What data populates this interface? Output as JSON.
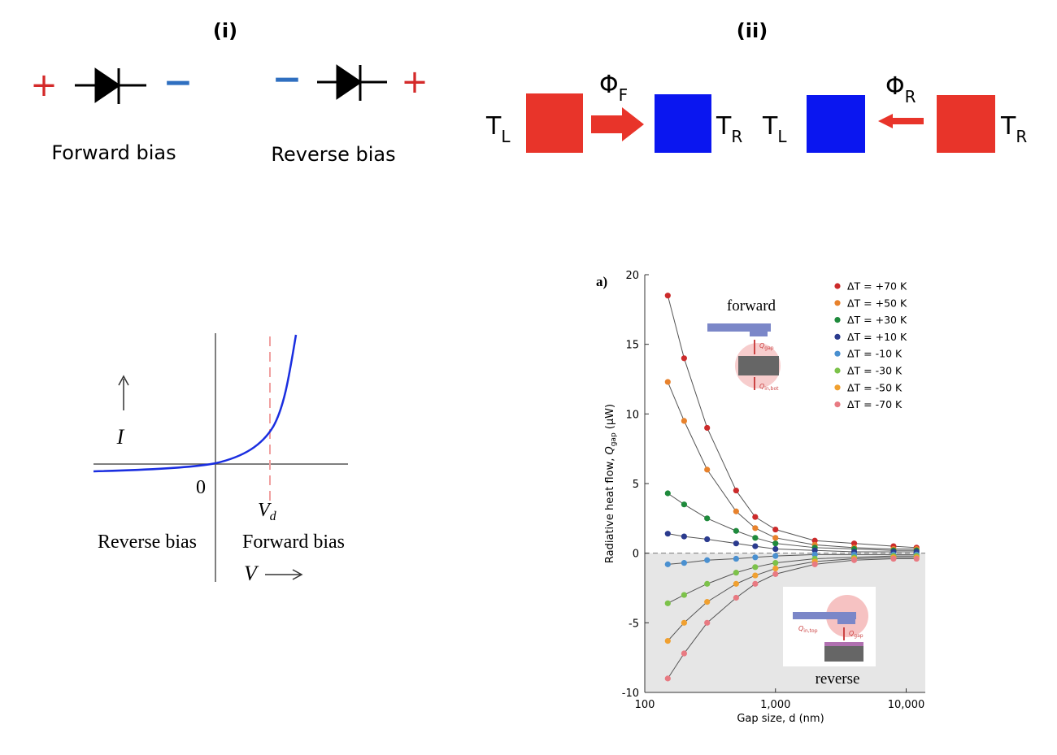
{
  "panel_i": {
    "title": "(i)",
    "forward": {
      "plus": "+",
      "minus": "−",
      "label": "Forward bias"
    },
    "reverse": {
      "minus": "−",
      "plus": "+",
      "label": "Reverse bias"
    }
  },
  "panel_ii": {
    "title": "(ii)",
    "forward": {
      "left": {
        "symbol": "T",
        "subscript": "L"
      },
      "flux": {
        "symbol": "Φ",
        "subscript": "F"
      },
      "right": {
        "symbol": "T",
        "subscript": "R"
      }
    },
    "reverse": {
      "left": {
        "symbol": "T",
        "subscript": "L"
      },
      "flux": {
        "symbol": "Φ",
        "subscript": "R"
      },
      "right": {
        "symbol": "T",
        "subscript": "R"
      }
    }
  },
  "iv_curve": {
    "y_label": "I",
    "origin": 0,
    "threshold": {
      "symbol": "V",
      "subscript": "d"
    },
    "left_label": "Reverse bias",
    "right_label": "Forward bias",
    "x_label": "V"
  },
  "chart_data": {
    "type": "scatter",
    "panel_label": "a)",
    "x_label": "Gap size, d (nm)",
    "y_label": {
      "prefix": "Radiative heat flow, ",
      "symbol": "Q",
      "subscript": "gap",
      "suffix": " (μW)"
    },
    "xscale": "log",
    "xlim": [
      100,
      14000
    ],
    "xticks": [
      100,
      {
        "value": 1000,
        "label": "1,000"
      },
      {
        "value": 10000,
        "label": "10,000"
      }
    ],
    "ylim": [
      -10,
      20
    ],
    "yticks": [
      -10,
      -5,
      0,
      5,
      10,
      15,
      20
    ],
    "legend": "upper right",
    "x": [
      150,
      200,
      300,
      500,
      700,
      1000,
      2000,
      4000,
      8000,
      12000
    ],
    "series": [
      {
        "name": "ΔT = +70 K",
        "color": "#cc2b2b",
        "values": [
          18.5,
          14,
          9,
          4.5,
          2.6,
          1.7,
          0.9,
          0.7,
          0.5,
          0.4
        ]
      },
      {
        "name": "ΔT = +50 K",
        "color": "#e8822c",
        "values": [
          12.3,
          9.5,
          6,
          3,
          1.8,
          1.1,
          0.6,
          0.4,
          0.3,
          0.3
        ]
      },
      {
        "name": "ΔT = +30 K",
        "color": "#1f8a3c",
        "values": [
          4.3,
          3.5,
          2.5,
          1.6,
          1.1,
          0.7,
          0.4,
          0.3,
          0.2,
          0.2
        ]
      },
      {
        "name": "ΔT = +10 K",
        "color": "#2b3b8e",
        "values": [
          1.4,
          1.2,
          1,
          0.7,
          0.5,
          0.3,
          0.2,
          0.1,
          0.1,
          0.1
        ]
      },
      {
        "name": "ΔT = -10 K",
        "color": "#4a90d0",
        "values": [
          -0.8,
          -0.7,
          -0.5,
          -0.4,
          -0.3,
          -0.2,
          -0.1,
          -0.1,
          -0.1,
          -0.1
        ]
      },
      {
        "name": "ΔT = -30 K",
        "color": "#7cc24a",
        "values": [
          -3.6,
          -3,
          -2.2,
          -1.4,
          -1,
          -0.7,
          -0.4,
          -0.3,
          -0.2,
          -0.2
        ]
      },
      {
        "name": "ΔT = -50 K",
        "color": "#f0a030",
        "values": [
          -6.3,
          -5,
          -3.5,
          -2.2,
          -1.6,
          -1.1,
          -0.6,
          -0.4,
          -0.3,
          -0.3
        ]
      },
      {
        "name": "ΔT = -70 K",
        "color": "#e87a82",
        "values": [
          -9,
          -7.2,
          -5,
          -3.2,
          -2.2,
          -1.5,
          -0.8,
          -0.5,
          -0.4,
          -0.4
        ]
      }
    ],
    "insets": {
      "forward": {
        "label": "forward",
        "q_gap": {
          "symbol": "Q",
          "subscript": "gap"
        },
        "q_in": {
          "symbol": "Q",
          "subscript": "in,bot"
        }
      },
      "reverse": {
        "label": "reverse",
        "q_in": {
          "symbol": "Q",
          "subscript": "in,top"
        },
        "q_gap": {
          "symbol": "Q",
          "subscript": "gap"
        }
      }
    }
  }
}
